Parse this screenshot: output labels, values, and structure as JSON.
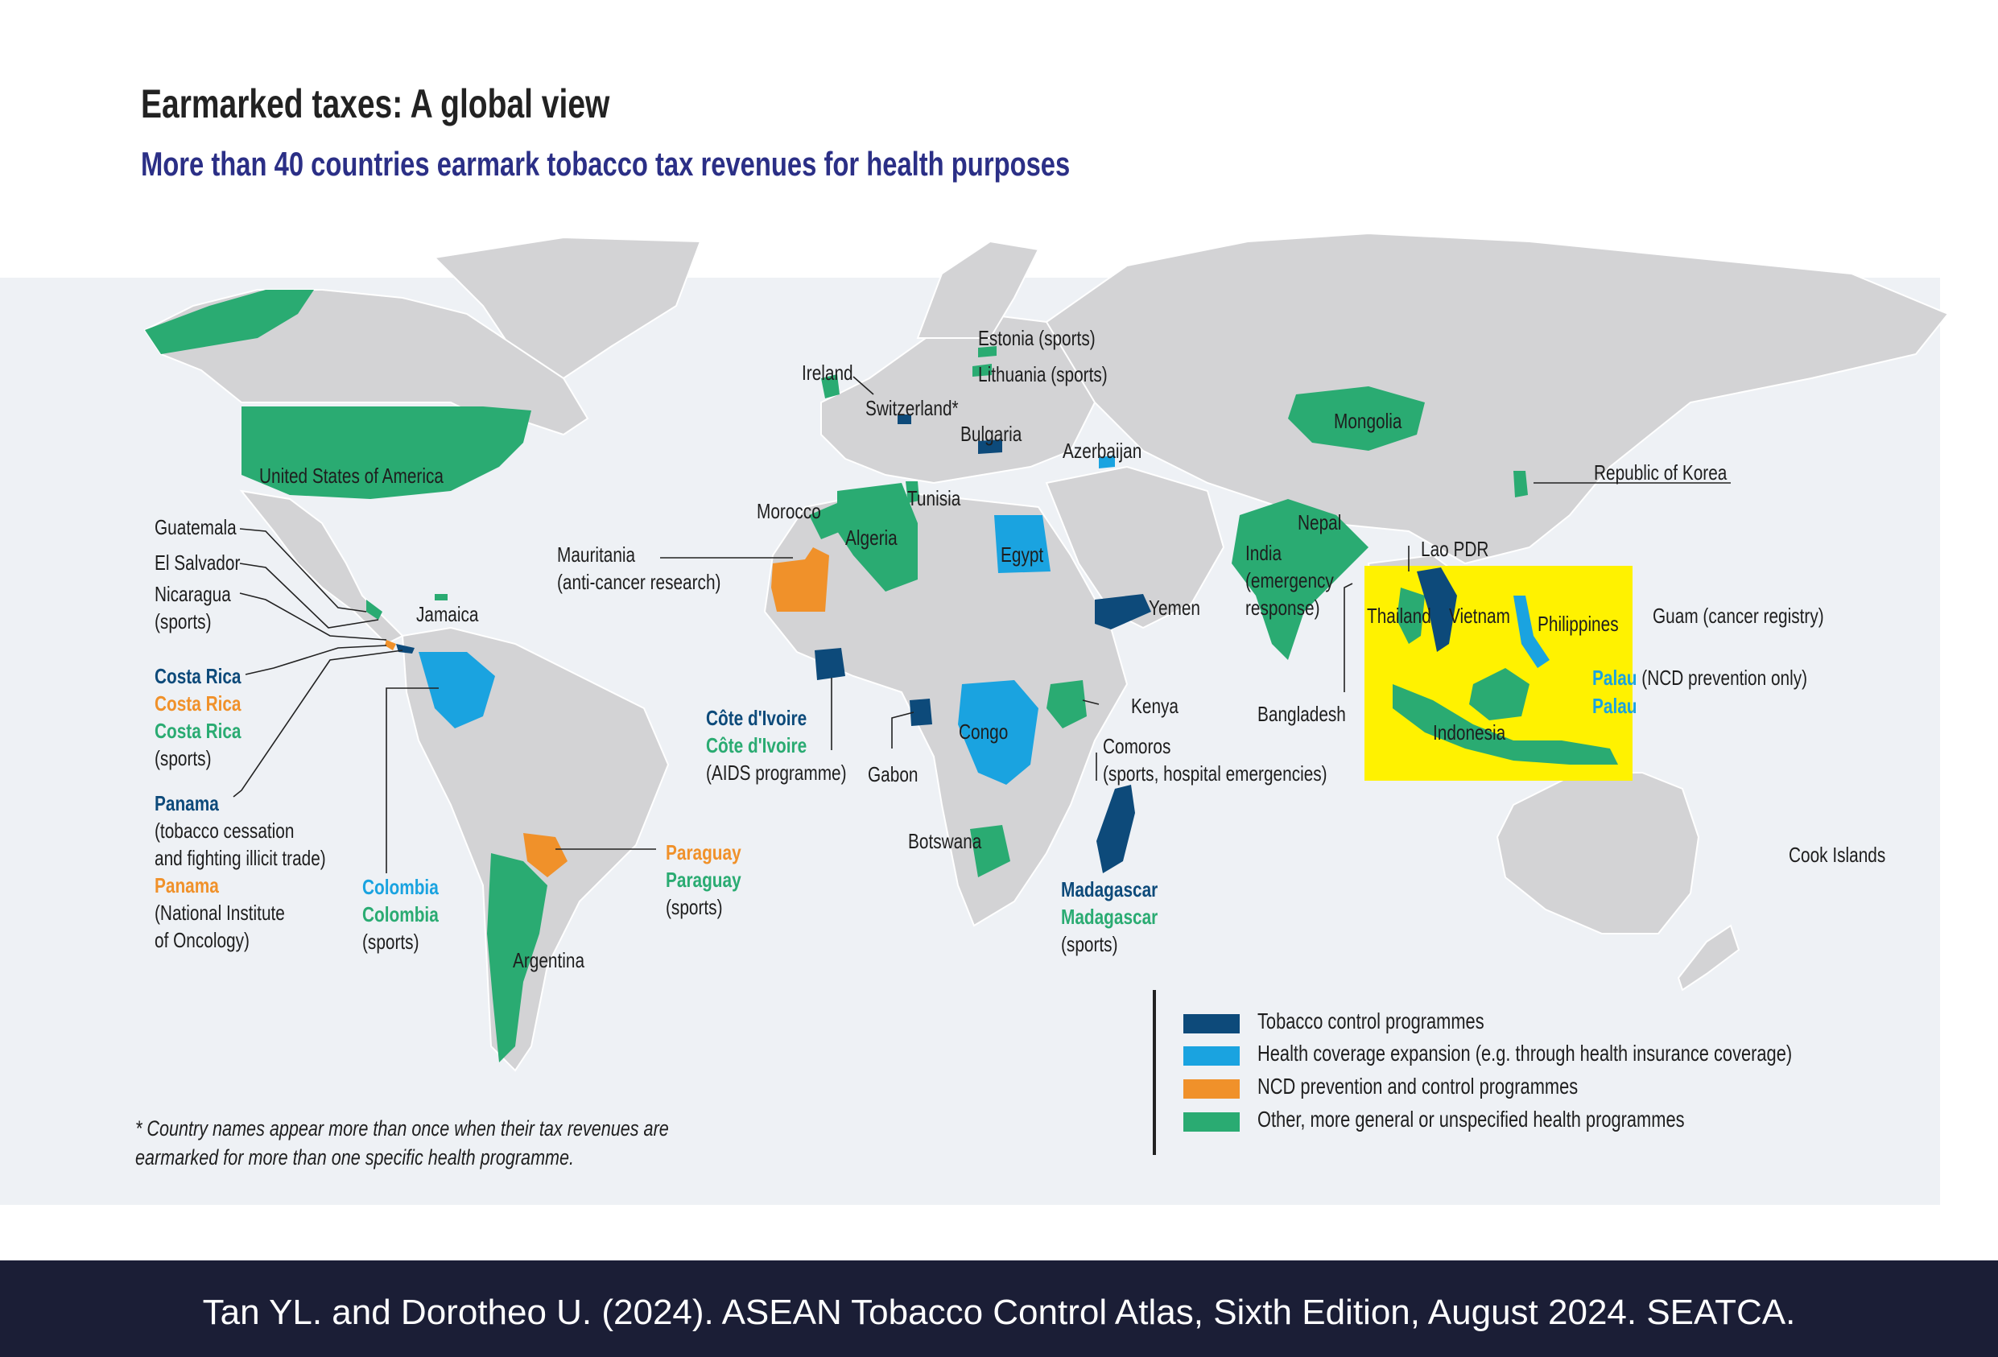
{
  "title": "Earmarked taxes: A global view",
  "subtitle": "More than 40 countries earmark tobacco tax revenues for health purposes",
  "colors": {
    "tobacco_control": "#0d4a7a",
    "health_coverage": "#1aa3e0",
    "ncd": "#f0912a",
    "other_health": "#2aab72",
    "land": "#d3d3d5",
    "ocean": "#eef1f5",
    "asean_highlight": "#fff200"
  },
  "labels": {
    "ireland": "Ireland",
    "estonia": "Estonia (sports)",
    "lithuania": "Lithuania (sports)",
    "switzerland": "Switzerland*",
    "bulgaria": "Bulgaria",
    "azerbaijan": "Azerbaijan",
    "mongolia": "Mongolia",
    "korea": "Republic of Korea",
    "usa": "United States of America",
    "guatemala": "Guatemala",
    "el_salvador": "El Salvador",
    "nicaragua_1": "Nicaragua",
    "nicaragua_2": "(sports)",
    "jamaica": "Jamaica",
    "morocco": "Morocco",
    "tunisia": "Tunisia",
    "algeria": "Algeria",
    "mauritania_1": "Mauritania",
    "mauritania_2": "(anti-cancer research)",
    "egypt": "Egypt",
    "nepal": "Nepal",
    "india_1": "India",
    "india_2": "(emergency",
    "india_3": "response)",
    "lao": "Lao PDR",
    "yemen": "Yemen",
    "thailand": "Thailand",
    "vietnam": "Vietnam",
    "philippines": "Philippines",
    "guam": "Guam (cancer registry)",
    "palau_1": "Palau",
    "palau_1_note": " (NCD prevention only)",
    "palau_2": "Palau",
    "costa_rica_1": "Costa Rica",
    "costa_rica_2": "Costa Rica",
    "costa_rica_3": "Costa Rica",
    "costa_rica_4": "(sports)",
    "cote_1": "Côte d'Ivoire",
    "cote_2": "Côte d'Ivoire",
    "cote_3": "(AIDS programme)",
    "gabon": "Gabon",
    "congo": "Congo",
    "kenya": "Kenya",
    "bangladesh": "Bangladesh",
    "indonesia": "Indonesia",
    "comoros_1": "Comoros",
    "comoros_2": "(sports, hospital emergencies)",
    "panama_1": "Panama",
    "panama_2": "(tobacco cessation",
    "panama_3": "and fighting illicit trade)",
    "panama_4": "Panama",
    "panama_5": "(National Institute",
    "panama_6": "of Oncology)",
    "colombia_1": "Colombia",
    "colombia_2": "Colombia",
    "colombia_3": "(sports)",
    "paraguay_1": "Paraguay",
    "paraguay_2": "Paraguay",
    "paraguay_3": "(sports)",
    "botswana": "Botswana",
    "madagascar_1": "Madagascar",
    "madagascar_2": "Madagascar",
    "madagascar_3": "(sports)",
    "argentina": "Argentina",
    "cook_islands": "Cook Islands"
  },
  "legend": [
    {
      "label": "Tobacco control programmes",
      "color": "#0d4a7a"
    },
    {
      "label": "Health coverage expansion (e.g. through health insurance coverage)",
      "color": "#1aa3e0"
    },
    {
      "label": "NCD prevention and control programmes",
      "color": "#f0912a"
    },
    {
      "label": "Other, more general or unspecified health programmes",
      "color": "#2aab72"
    }
  ],
  "footnote_1": "* Country names appear more than once when their tax revenues are",
  "footnote_2": "earmarked for more than one specific health programme.",
  "source": "Tan YL. and Dorotheo U. (2024). ASEAN Tobacco Control Atlas, Sixth Edition, August 2024. SEATCA."
}
